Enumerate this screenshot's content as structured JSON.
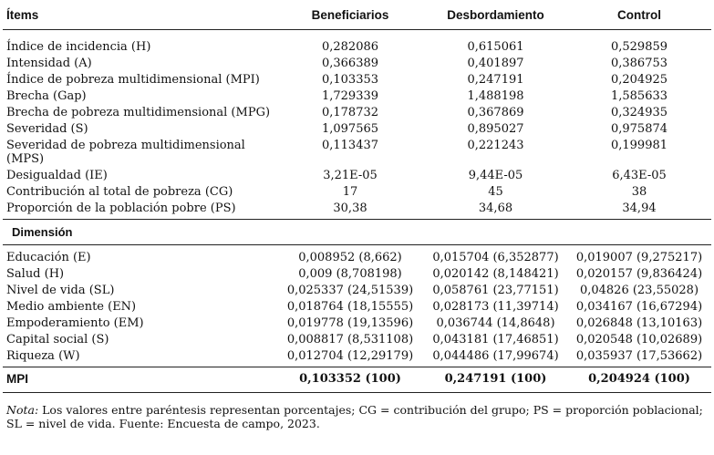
{
  "table": {
    "headers": [
      "Ítems",
      "Beneficiarios",
      "Desbordamiento",
      "Control"
    ],
    "indicators": [
      {
        "label": "Índice de incidencia (H)",
        "b": "0,282086",
        "d": "0,615061",
        "c": "0,529859"
      },
      {
        "label": "Intensidad (A)",
        "b": "0,366389",
        "d": "0,401897",
        "c": "0,386753"
      },
      {
        "label": "Índice de pobreza multidimensional (MPI)",
        "b": "0,103353",
        "d": "0,247191",
        "c": "0,204925"
      },
      {
        "label": "Brecha (Gap)",
        "b": "1,729339",
        "d": "1,488198",
        "c": "1,585633"
      },
      {
        "label": "Brecha de pobreza multidimensional (MPG)",
        "b": "0,178732",
        "d": "0,367869",
        "c": "0,324935"
      },
      {
        "label": "Severidad (S)",
        "b": "1,097565",
        "d": "0,895027",
        "c": "0,975874"
      },
      {
        "label": "Severidad de pobreza multidimensional (MPS)",
        "b": "0,113437",
        "d": "0,221243",
        "c": "0,199981"
      },
      {
        "label": "Desigualdad (IE)",
        "b": "3,21E-05",
        "d": "9,44E-05",
        "c": "6,43E-05"
      },
      {
        "label": "Contribución al total de pobreza (CG)",
        "b": "17",
        "d": "45",
        "c": "38"
      },
      {
        "label": "Proporción de la población pobre (PS)",
        "b": "30,38",
        "d": "34,68",
        "c": "34,94"
      }
    ],
    "section_label": "Dimensión",
    "dimensions": [
      {
        "label": "Educación (E)",
        "b": "0,008952 (8,662)",
        "d": "0,015704 (6,352877)",
        "c": "0,019007 (9,275217)"
      },
      {
        "label": "Salud (H)",
        "b": "0,009 (8,708198)",
        "d": "0,020142 (8,148421)",
        "c": "0,020157 (9,836424)"
      },
      {
        "label": "Nivel de vida (SL)",
        "b": "0,025337 (24,51539)",
        "d": "0,058761 (23,77151)",
        "c": "0,04826 (23,55028)"
      },
      {
        "label": "Medio ambiente (EN)",
        "b": "0,018764 (18,15555)",
        "d": "0,028173 (11,39714)",
        "c": "0,034167 (16,67294)"
      },
      {
        "label": "Empoderamiento (EM)",
        "b": "0,019778 (19,13596)",
        "d": "0,036744 (14,8648)",
        "c": "0,026848 (13,10163)"
      },
      {
        "label": "Capital social (S)",
        "b": "0,008817 (8,531108)",
        "d": "0,043181 (17,46851)",
        "c": "0,020548 (10,02689)"
      },
      {
        "label": "Riqueza (W)",
        "b": "0,012704 (12,29179)",
        "d": "0,044486 (17,99674)",
        "c": "0,035937 (17,53662)"
      }
    ],
    "total": {
      "label": "MPI",
      "b": "0,103352 (100)",
      "d": "0,247191 (100)",
      "c": "0,204924 (100)"
    }
  },
  "note": {
    "prefix": "Nota:",
    "text": " Los valores entre paréntesis representan porcentajes; CG = contribución del grupo; PS = proporción poblacional; SL = nivel de vida. Fuente: Encuesta de campo, 2023."
  }
}
